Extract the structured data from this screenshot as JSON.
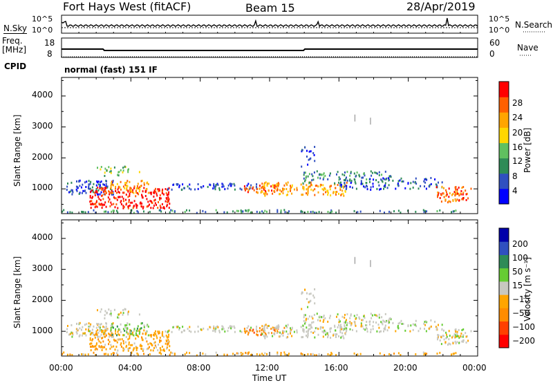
{
  "header": {
    "radar": "Fort Hays West (fitACF)",
    "beam": "Beam 15",
    "date": "28/Apr/2019"
  },
  "noise_panel": {
    "left_label": "N.Sky",
    "right_label": "N.Search",
    "left_ticks": [
      "10^5",
      "10^0"
    ],
    "right_ticks": [
      "10^5",
      "10^0"
    ]
  },
  "freq_panel": {
    "left_label_1": "Freq.",
    "left_label_2": "[MHz]",
    "right_label": "Nave",
    "left_ticks": [
      "18",
      "8"
    ],
    "right_ticks": [
      "60",
      "0"
    ]
  },
  "cpid": {
    "label": "CPID",
    "value": "normal (fast) 151 IF"
  },
  "colors": {
    "power": [
      "#0000ff",
      "#3050c0",
      "#2e8b57",
      "#60c060",
      "#ffd700",
      "#ffa500",
      "#ff6000",
      "#ff0000"
    ],
    "velocity": [
      "#ff0000",
      "#ff4000",
      "#ff8c00",
      "#ffa500",
      "#c8c8c0",
      "#66cc33",
      "#2e8b57",
      "#3050c0",
      "#0000aa"
    ]
  },
  "chart_data": [
    {
      "type": "heatmap",
      "name": "power",
      "ylabel": "Slant Range [km]",
      "y_ticks": [
        "1000",
        "2000",
        "3000",
        "4000"
      ],
      "ylim": [
        200,
        4600
      ],
      "colorbar_label": "Power [dB]",
      "colorbar_ticks": [
        "4",
        "8",
        "12",
        "16",
        "20",
        "24",
        "28"
      ],
      "clim": [
        0,
        32
      ]
    },
    {
      "type": "heatmap",
      "name": "velocity",
      "ylabel": "Slant Range [km]",
      "xlabel": "Time UT",
      "x_ticks": [
        "00:00",
        "04:00",
        "08:00",
        "12:00",
        "16:00",
        "20:00",
        "00:00"
      ],
      "y_ticks": [
        "1000",
        "2000",
        "3000",
        "4000"
      ],
      "ylim": [
        200,
        4600
      ],
      "colorbar_label": "Velocity [m s⁻¹]",
      "colorbar_ticks": [
        "200",
        "100",
        "50",
        "15",
        "−15",
        "−50",
        "−100",
        "−200"
      ]
    }
  ]
}
